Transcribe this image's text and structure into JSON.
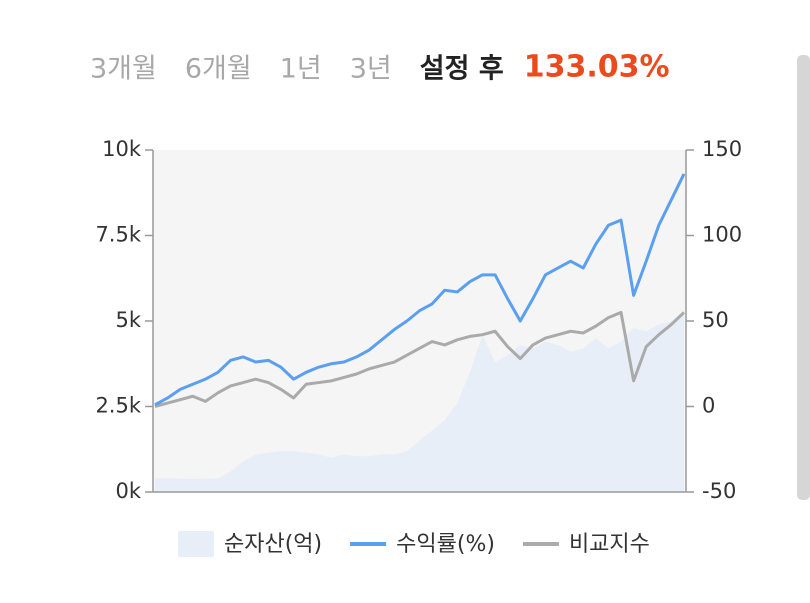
{
  "tabs": [
    "3개월",
    "6개월",
    "1년",
    "3년",
    "설정 후"
  ],
  "selected_tab": 4,
  "return": "133.03%",
  "chart_data": {
    "type": "line",
    "categories": [
      null,
      null,
      null,
      null,
      null,
      null,
      null,
      null,
      null,
      null,
      null,
      null,
      null,
      null,
      null,
      null,
      null,
      null,
      null,
      null,
      null,
      null,
      null,
      null,
      null,
      null,
      null,
      null,
      null,
      null,
      null,
      null,
      null,
      null,
      null,
      null,
      null,
      null,
      null,
      null,
      null,
      null,
      null
    ],
    "series": [
      {
        "name": "순자산(억)",
        "type": "area",
        "color": "#e8eef8",
        "values": [
          400,
          400,
          400,
          380,
          390,
          400,
          600,
          900,
          1100,
          1150,
          1200,
          1200,
          1150,
          1100,
          1000,
          1100,
          1050,
          1050,
          1100,
          1100,
          1200,
          1500,
          1800,
          2100,
          2600,
          3500,
          4600,
          3800,
          4000,
          4300,
          4200,
          4400,
          4300,
          4100,
          4200,
          4500,
          4200,
          4400,
          4800,
          4700,
          4900,
          5000,
          5300
        ]
      },
      {
        "name": "수익률(%)",
        "axis": "y2",
        "color": "#5a9ff0",
        "values": [
          1,
          5,
          10,
          13,
          16,
          20,
          27,
          29,
          26,
          27,
          23,
          16,
          20,
          23,
          25,
          26,
          29,
          33,
          39,
          45,
          50,
          56,
          60,
          68,
          67,
          73,
          77,
          77,
          63,
          50,
          63,
          77,
          81,
          85,
          81,
          95,
          106,
          109,
          65,
          85,
          106,
          121,
          136
        ]
      },
      {
        "name": "비교지수",
        "axis": "y2",
        "color": "#aaaaaa",
        "values": [
          0,
          2,
          4,
          6,
          3,
          8,
          12,
          14,
          16,
          14,
          10,
          5,
          13,
          14,
          15,
          17,
          19,
          22,
          24,
          26,
          30,
          34,
          38,
          36,
          39,
          41,
          42,
          44,
          35,
          28,
          36,
          40,
          42,
          44,
          43,
          47,
          52,
          55,
          15,
          35,
          42,
          48,
          55
        ]
      }
    ],
    "ylim": [
      0,
      10000
    ],
    "yticks": [
      {
        "value": 0,
        "label": "0k"
      },
      {
        "value": 2500,
        "label": "2.5k"
      },
      {
        "value": 5000,
        "label": "5k"
      },
      {
        "value": 7500,
        "label": "7.5k"
      },
      {
        "value": 10000,
        "label": "10k"
      }
    ],
    "y2lim": [
      -50,
      150
    ],
    "y2ticks": [
      -50,
      0,
      50,
      100,
      150
    ]
  }
}
